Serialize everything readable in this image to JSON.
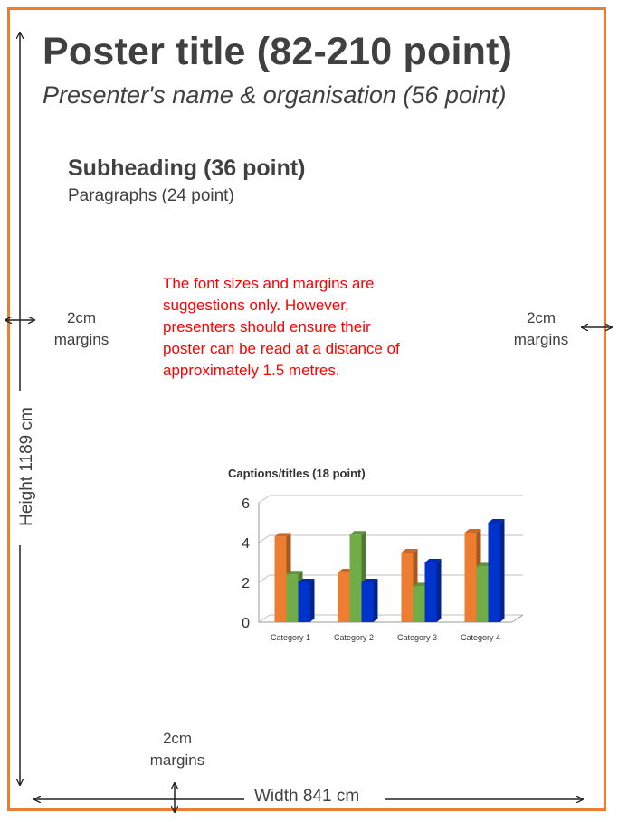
{
  "poster": {
    "title": "Poster title (82-210 point)",
    "presenter": "Presenter's name & organisation (56 point)",
    "subheading": "Subheading (36 point)",
    "paragraphs": "Paragraphs (24 point)",
    "note_lines": [
      "The font sizes and margins are",
      "suggestions only. However,",
      "presenters should ensure their",
      "poster can be read at a distance of",
      "approximately 1.5 metres."
    ],
    "margin_label_line1": "2cm",
    "margin_label_line2": "margins",
    "height_label": "Height 1189 cm",
    "width_label": "Width 841 cm",
    "frame_color": "#ed7d31",
    "note_color": "#ff0000"
  },
  "chart_data": {
    "type": "bar",
    "title": "Captions/titles (18 point)",
    "categories": [
      "Category 1",
      "Category 2",
      "Category 3",
      "Category 4"
    ],
    "series": [
      {
        "values": [
          4.3,
          2.5,
          3.5,
          4.5
        ],
        "color": "#ed7d31"
      },
      {
        "values": [
          2.4,
          4.4,
          1.8,
          2.8
        ],
        "color": "#70ad47"
      },
      {
        "values": [
          2.0,
          2.0,
          3.0,
          5.0
        ],
        "color": "#0033cc"
      }
    ],
    "ylim": [
      0,
      6
    ],
    "yticks": [
      0,
      2,
      4,
      6
    ],
    "grid": true
  }
}
